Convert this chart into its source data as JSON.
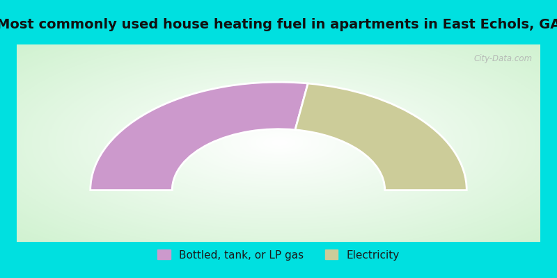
{
  "title": "Most commonly used house heating fuel in apartments in East Echols, GA",
  "segments": [
    {
      "label": "Bottled, tank, or LP gas",
      "value": 55,
      "color": "#cc99cc"
    },
    {
      "label": "Electricity",
      "value": 45,
      "color": "#cccc99"
    }
  ],
  "background_cyan": "#00e0e0",
  "background_chart_color": "#c8e8c0",
  "title_fontsize": 14,
  "legend_fontsize": 11,
  "watermark": "City-Data.com",
  "outer_r": 1.15,
  "inner_r": 0.65
}
